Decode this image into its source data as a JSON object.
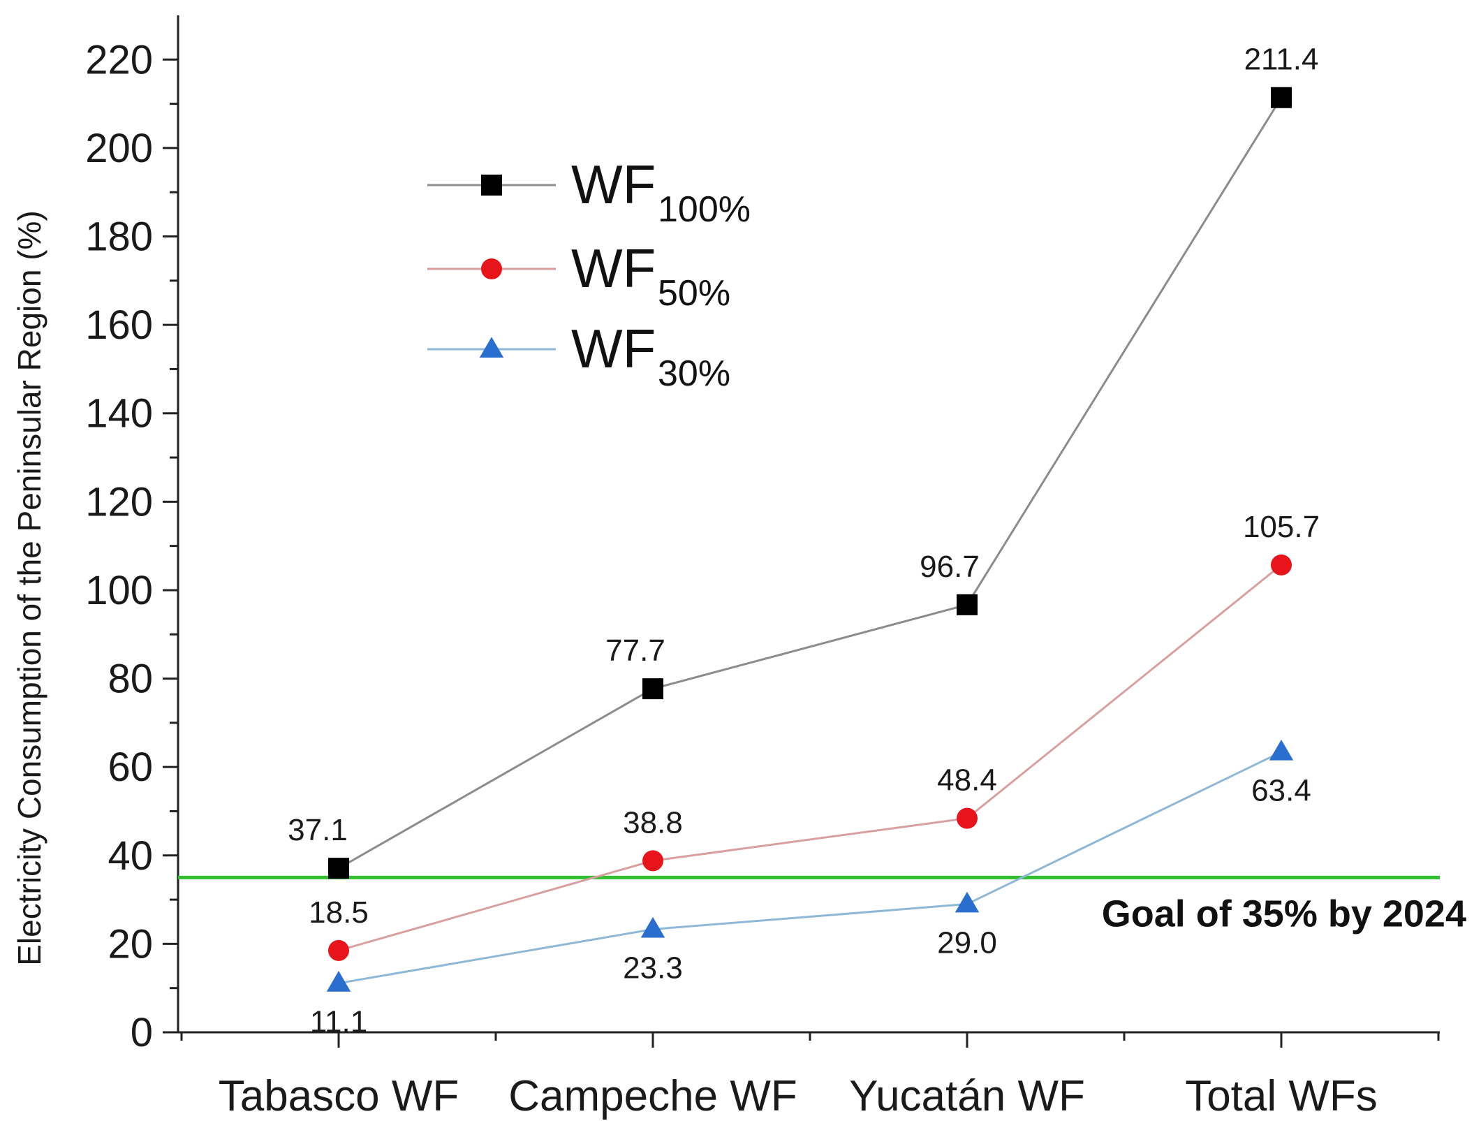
{
  "chart_data": {
    "type": "line",
    "title": "",
    "xlabel": "",
    "ylabel": "Electricity Consumption of the Peninsular Region (%)",
    "ylim": [
      0,
      230
    ],
    "yticks": [
      0,
      20,
      40,
      60,
      80,
      100,
      120,
      140,
      160,
      180,
      200,
      220
    ],
    "categories": [
      "Tabasco WF",
      "Campeche WF",
      "Yucatán WF",
      "Total WFs"
    ],
    "series": [
      {
        "key": "wf100",
        "name": "WF",
        "sub": "100%",
        "marker": "square",
        "marker_color": "#000000",
        "line_color": "#8c8c8c",
        "values": [
          37.1,
          77.7,
          96.7,
          211.4
        ],
        "labels": [
          "37.1",
          "77.7",
          "96.7",
          "211.4"
        ],
        "label_side": [
          "above",
          "above",
          "above",
          "above"
        ]
      },
      {
        "key": "wf50",
        "name": "WF",
        "sub": "50%",
        "marker": "circle",
        "marker_color": "#e8141c",
        "line_color": "#d9a0a0",
        "values": [
          18.5,
          38.8,
          48.4,
          105.7
        ],
        "labels": [
          "18.5",
          "38.8",
          "48.4",
          "105.7"
        ],
        "label_side": [
          "above",
          "above",
          "above",
          "above"
        ]
      },
      {
        "key": "wf30",
        "name": "WF",
        "sub": "30%",
        "marker": "triangle",
        "marker_color": "#2a6fd0",
        "line_color": "#8fb8d6",
        "values": [
          11.1,
          23.3,
          29.0,
          63.4
        ],
        "labels": [
          "11.1",
          "23.3",
          "29.0",
          "63.4"
        ],
        "label_side": [
          "below",
          "below",
          "below",
          "below"
        ]
      }
    ],
    "reference_line": {
      "value": 35,
      "label": "Goal of 35% by 2024",
      "color": "#2fbf2f"
    },
    "legend_position": "top-left",
    "grid": false
  }
}
